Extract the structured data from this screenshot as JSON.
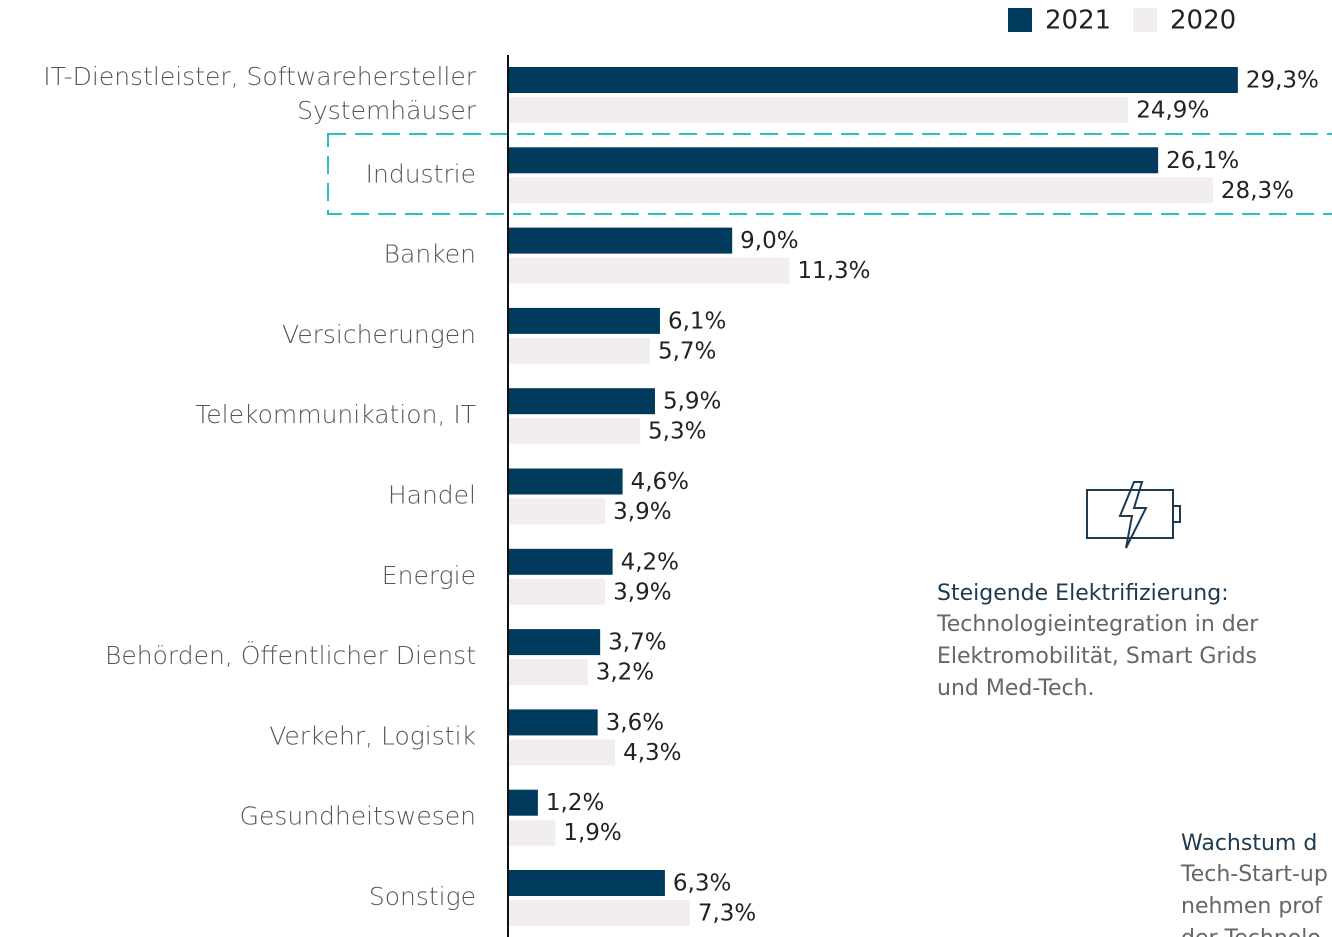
{
  "chart_data": {
    "type": "hbar",
    "categories": [
      "IT-Dienstleister, Softwarehersteller\nSystemhäuser",
      "Industrie",
      "Banken",
      "Versicherungen",
      "Telekommunikation, IT",
      "Handel",
      "Energie",
      "Behörden, Öffentlicher Dienst",
      "Verkehr, Logistik",
      "Gesundheitswesen",
      "Sonstige"
    ],
    "series": [
      {
        "name": "2021",
        "color": "#003a5c",
        "values": [
          29.3,
          26.1,
          9.0,
          6.1,
          5.9,
          4.6,
          4.2,
          3.7,
          3.6,
          1.2,
          6.3
        ],
        "value_labels": [
          "29,3%",
          "26,1%",
          "9,0%",
          "6,1%",
          "5,9%",
          "4,6%",
          "4,2%",
          "3,7%",
          "3,6%",
          "1,2%",
          "6,3%"
        ]
      },
      {
        "name": "2020",
        "color": "#f3eeee",
        "values": [
          24.9,
          28.3,
          11.3,
          5.7,
          5.3,
          3.9,
          3.9,
          3.2,
          4.3,
          1.9,
          7.3
        ],
        "value_labels": [
          "24,9%",
          "28,3%",
          "11,3%",
          "5,7%",
          "5,3%",
          "3,9%",
          "3,9%",
          "3,2%",
          "4,3%",
          "1,9%",
          "7,3%"
        ]
      }
    ],
    "xlim": [
      0,
      33
    ],
    "legend": "top-right",
    "annotations": [
      {
        "title": "Steigende Elektrifizierung:",
        "lines": [
          "Technologieintegration in der",
          "Elektromobilität, Smart Grids",
          "und Med-Tech."
        ]
      },
      {
        "title": "Wachstum d",
        "lines": [
          "Tech-Start-up",
          "nehmen prof",
          "der Technolo"
        ]
      }
    ]
  }
}
